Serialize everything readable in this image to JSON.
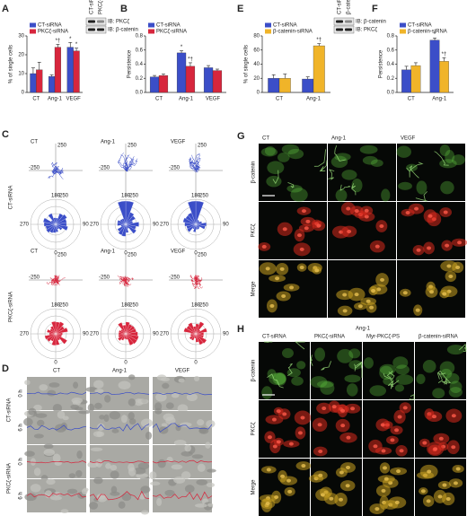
{
  "panels": {
    "A": {
      "letter": "A",
      "ylabel": "% of single cells",
      "categories": [
        "CT",
        "Ang-1",
        "VEGF"
      ],
      "series": [
        {
          "name": "CT-siRNA",
          "color": "#3b4ec8",
          "values": [
            10,
            8.5,
            24
          ],
          "errors": [
            3,
            0.8,
            2.5
          ],
          "annotations": [
            null,
            null,
            "*"
          ]
        },
        {
          "name": "PKCζ-siRNA",
          "color": "#d7263d",
          "values": [
            12,
            24,
            22
          ],
          "errors": [
            4,
            1.5,
            1.5
          ],
          "annotations": [
            null,
            "*†",
            "*"
          ]
        }
      ],
      "ylim": [
        0,
        30
      ],
      "yticks": [
        0,
        10,
        20,
        30
      ],
      "blot": {
        "lanes": [
          "CT-siRNA",
          "PKCζ-siRNA"
        ],
        "rows": [
          "IB: PKCζ",
          "IB: β-catenin"
        ]
      }
    },
    "B": {
      "letter": "B",
      "ylabel": "Persistence",
      "categories": [
        "CT",
        "Ang-1",
        "VEGF"
      ],
      "series": [
        {
          "name": "CT-siRNA",
          "color": "#3b4ec8",
          "values": [
            0.22,
            0.56,
            0.35
          ],
          "errors": [
            0.02,
            0.03,
            0.03
          ],
          "annotations": [
            null,
            "*",
            null
          ]
        },
        {
          "name": "PKCζ-siRNA",
          "color": "#d7263d",
          "values": [
            0.24,
            0.37,
            0.31
          ],
          "errors": [
            0.02,
            0.05,
            0.02
          ],
          "annotations": [
            null,
            "*†",
            null
          ]
        }
      ],
      "ylim": [
        0,
        0.8
      ],
      "yticks": [
        {
          "value": 0,
          "label": "0.0"
        },
        0.2,
        0.4,
        0.6,
        0.8
      ]
    },
    "E": {
      "letter": "E",
      "ylabel": "% of single cells",
      "categories": [
        "CT",
        "Ang-1"
      ],
      "series": [
        {
          "name": "CT-siRNA",
          "color": "#3b4ec8",
          "values": [
            20,
            19
          ],
          "errors": [
            5,
            3
          ],
          "annotations": [
            null,
            null
          ]
        },
        {
          "name": "β-catenin-siRNA",
          "color": "#f0b429",
          "values": [
            20,
            66
          ],
          "errors": [
            6,
            3
          ],
          "annotations": [
            null,
            "*†"
          ]
        }
      ],
      "ylim": [
        0,
        80
      ],
      "yticks": [
        0,
        20,
        40,
        60,
        80
      ],
      "blot": {
        "lanes": [
          "CT-siRNA",
          "β-catenin-siRNA"
        ],
        "rows": [
          "IB: β-catenin",
          "IB: PKCζ"
        ]
      }
    },
    "F": {
      "letter": "F",
      "ylabel": "Persistence",
      "categories": [
        "CT",
        "Ang-1"
      ],
      "series": [
        {
          "name": "CT-siRNA",
          "color": "#3b4ec8",
          "values": [
            0.32,
            0.74
          ],
          "errors": [
            0.05,
            0.03
          ],
          "annotations": [
            null,
            "*"
          ]
        },
        {
          "name": "β-catenin-siRNA",
          "color": "#f0b429",
          "values": [
            0.38,
            0.44
          ],
          "errors": [
            0.04,
            0.05
          ],
          "annotations": [
            null,
            "*†"
          ]
        }
      ],
      "ylim": [
        0,
        0.8
      ],
      "yticks": [
        {
          "value": 0,
          "label": "0.0"
        },
        0.2,
        0.4,
        0.6,
        0.8
      ]
    },
    "C": {
      "letter": "C",
      "columns": [
        "CT",
        "Ang-1",
        "VEGF"
      ],
      "rows": [
        "CT-siRNA",
        "PKCζ-siRNA"
      ],
      "traj_labels": {
        "top": 250,
        "left": -250,
        "bottom": -250
      },
      "angles": {
        "top": 180,
        "bottom": 0,
        "right": 90,
        "left": 270
      }
    },
    "D": {
      "letter": "D",
      "columns": [
        "CT",
        "Ang-1",
        "VEGF"
      ],
      "times": [
        "0 h",
        "6 h"
      ],
      "rows": [
        "CT-siRNA",
        "PKCζ-siRNA"
      ]
    },
    "G": {
      "letter": "G",
      "columns": [
        "CT",
        "Ang-1",
        "VEGF"
      ],
      "rows": [
        "β-catenin",
        "PKCζ",
        "Merge"
      ]
    },
    "H": {
      "letter": "H",
      "title": "Ang-1",
      "columns": [
        "CT-siRNA",
        "PKCζ-siRNA",
        "Myr-PKCζ-PS",
        "β-catenin-siRNA"
      ],
      "rows": [
        "β-catenin",
        "PKCζ",
        "Merge"
      ]
    }
  }
}
